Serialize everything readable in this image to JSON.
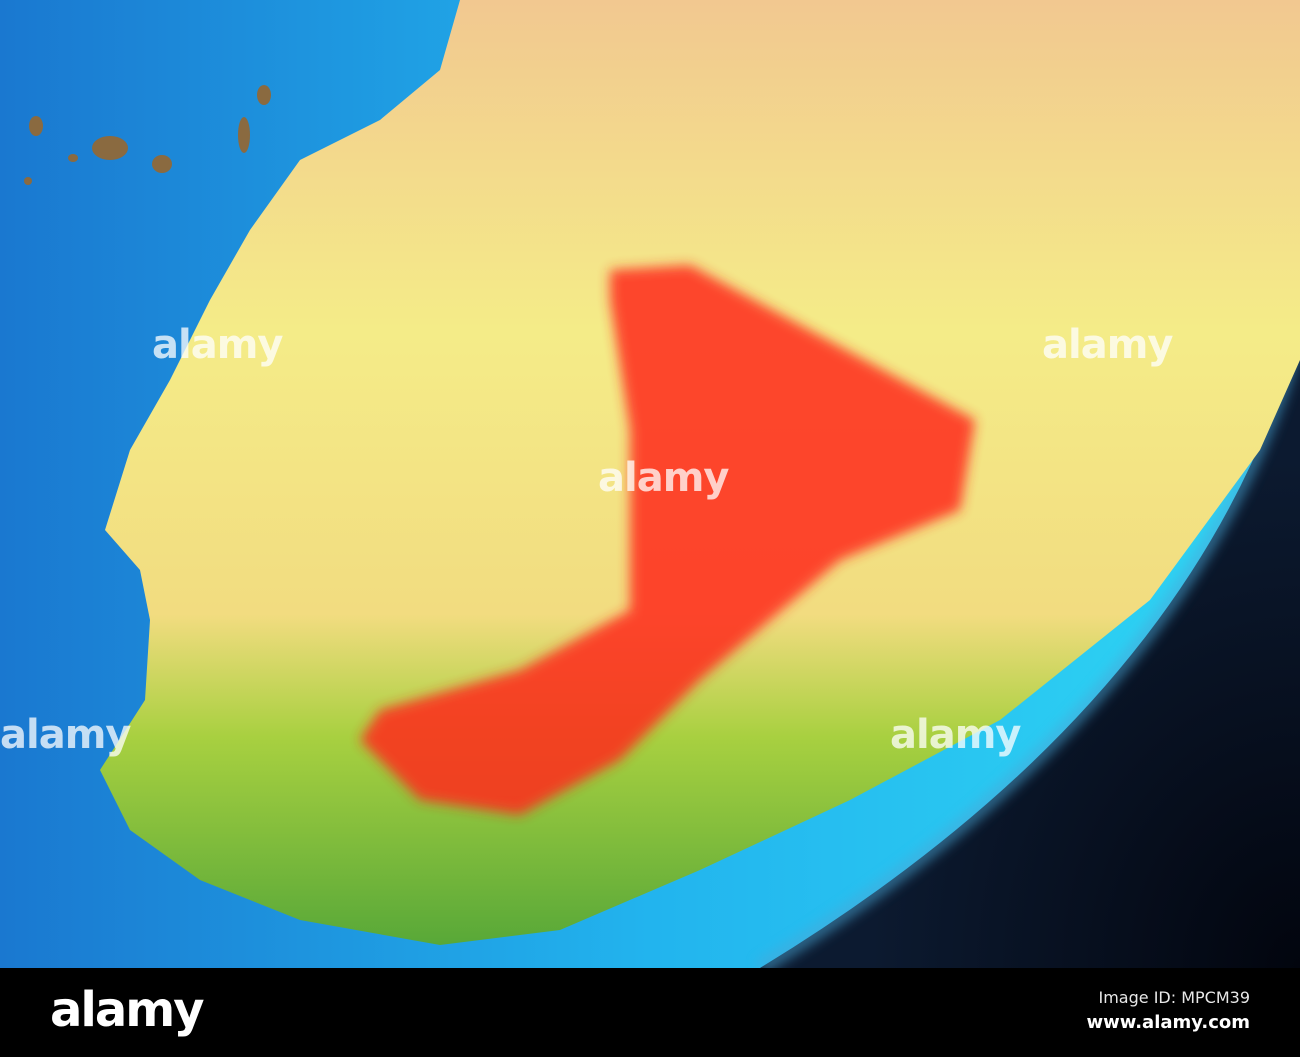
{
  "map": {
    "subject": "Mali highlighted on globe",
    "highlight_color": "#ff2a1a",
    "ocean_color": "#18a8e8",
    "land_color": "#f0e878",
    "vegetation_color": "#7cc43a",
    "space_color": "#0a1020"
  },
  "watermark": {
    "text": "alamy",
    "dot": "a"
  },
  "footer": {
    "logo": "alamy",
    "image_id": "Image ID: MPCM39",
    "website": "www.alamy.com"
  }
}
